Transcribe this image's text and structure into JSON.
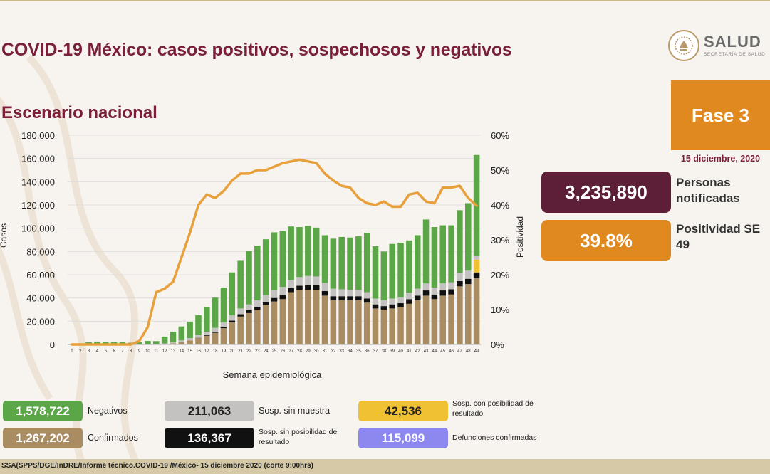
{
  "title": "COVID-19 México: casos positivos, sospechosos y negativos",
  "subtitle": "Escenario nacional",
  "logo": {
    "name": "SALUD",
    "sub": "SECRETARÍA DE SALUD"
  },
  "phase": "Fase 3",
  "date": "15 diciembre, 2020",
  "kpis": {
    "notified_value": "3,235,890",
    "notified_label": "Personas notificadas",
    "positivity_value": "39.8%",
    "positivity_label": "Positividad SE 49"
  },
  "legend": [
    {
      "value": "1,578,722",
      "label": "Negativos",
      "color": "#5ba646",
      "text_color": "#ffffff"
    },
    {
      "value": "1,267,202",
      "label": "Confirmados",
      "color": "#a98c61",
      "text_color": "#ffffff"
    },
    {
      "value": "211,063",
      "label": "Sosp. sin muestra",
      "color": "#c4c2c0",
      "text_color": "#222222"
    },
    {
      "value": "136,367",
      "label": "Sosp. sin posibilidad de resultado",
      "color": "#111111",
      "text_color": "#ffffff"
    },
    {
      "value": "42,536",
      "label": "Sosp. con posibilidad de resultado",
      "color": "#f0c233",
      "text_color": "#222222"
    },
    {
      "value": "115,099",
      "label": "Defunciones confirmadas",
      "color": "#8c88f0",
      "text_color": "#ffffff"
    }
  ],
  "footer": "SSA(SPPS/DGE/InDRE/Informe técnico.COVID-19 /México- 15 diciembre 2020 (corte 9:00hrs)",
  "chart_data": {
    "type": "bar",
    "stacked": true,
    "xlabel": "Semana epidemiológica",
    "ylabel": "Casos",
    "y2label": "Positividad",
    "ylim": [
      0,
      180000
    ],
    "y2lim": [
      0,
      60
    ],
    "yticks": [
      "0",
      "20,000",
      "40,000",
      "60,000",
      "80,000",
      "100,000",
      "120,000",
      "140,000",
      "160,000",
      "180,000"
    ],
    "y2ticks": [
      "0%",
      "10%",
      "20%",
      "30%",
      "40%",
      "50%",
      "60%"
    ],
    "categories": [
      "1",
      "2",
      "3",
      "4",
      "5",
      "6",
      "7",
      "8",
      "9",
      "10",
      "11",
      "12",
      "13",
      "14",
      "15",
      "16",
      "17",
      "18",
      "19",
      "20",
      "21",
      "22",
      "23",
      "24",
      "25",
      "26",
      "27",
      "28",
      "29",
      "30",
      "31",
      "32",
      "33",
      "34",
      "35",
      "36",
      "37",
      "38",
      "39",
      "40",
      "41",
      "42",
      "43",
      "44",
      "45",
      "46",
      "47",
      "48",
      "49"
    ],
    "series": [
      {
        "name": "Confirmados",
        "color": "#a98c61",
        "values": [
          0,
          0,
          0,
          0,
          0,
          0,
          0,
          0,
          0,
          0,
          100,
          300,
          1000,
          2000,
          3500,
          5500,
          7500,
          10000,
          14000,
          19000,
          24000,
          27000,
          30000,
          34000,
          37000,
          39000,
          45000,
          47000,
          47000,
          47000,
          42000,
          38000,
          38000,
          38000,
          38000,
          36000,
          31000,
          30000,
          31000,
          32000,
          35000,
          38000,
          42000,
          39000,
          42000,
          43000,
          50000,
          52000,
          57000
        ]
      },
      {
        "name": "Sosp. sin posibilidad de resultado",
        "color": "#111111",
        "values": [
          0,
          0,
          0,
          0,
          0,
          0,
          0,
          0,
          0,
          0,
          0,
          0,
          0,
          0,
          0,
          200,
          500,
          800,
          1000,
          1500,
          2000,
          2500,
          2500,
          2500,
          3000,
          3500,
          3500,
          3500,
          4500,
          4000,
          4000,
          3500,
          3500,
          3500,
          3500,
          3500,
          3500,
          3000,
          3500,
          3500,
          4000,
          4000,
          4500,
          4000,
          4500,
          4500,
          4500,
          4500,
          5000
        ]
      },
      {
        "name": "Sosp. con posibilidad de resultado",
        "color": "#f0c233",
        "values": [
          0,
          0,
          0,
          0,
          0,
          0,
          0,
          0,
          0,
          0,
          0,
          0,
          0,
          0,
          0,
          0,
          0,
          0,
          0,
          0,
          0,
          0,
          0,
          0,
          0,
          0,
          0,
          0,
          0,
          0,
          0,
          0,
          0,
          0,
          0,
          0,
          0,
          0,
          0,
          0,
          0,
          0,
          0,
          0,
          0,
          0,
          0,
          0,
          11000
        ]
      },
      {
        "name": "Sosp. sin muestra",
        "color": "#c4c2c0",
        "values": [
          0,
          0,
          0,
          0,
          0,
          0,
          0,
          0,
          0,
          0,
          300,
          500,
          1000,
          1500,
          2000,
          2500,
          3000,
          3500,
          4000,
          4500,
          5000,
          5000,
          5500,
          6000,
          6500,
          7000,
          7000,
          7500,
          7500,
          7500,
          7000,
          6500,
          6000,
          5500,
          5500,
          5500,
          5000,
          5000,
          5000,
          5000,
          5500,
          6000,
          6000,
          6000,
          6000,
          6000,
          7000,
          7000,
          3000
        ]
      },
      {
        "name": "Negativos",
        "color": "#5ba646",
        "values": [
          500,
          1000,
          2000,
          2500,
          2000,
          2000,
          2000,
          1500,
          2000,
          3000,
          2500,
          6000,
          9000,
          12000,
          14000,
          17000,
          21000,
          26000,
          30000,
          37000,
          41000,
          46000,
          47000,
          48000,
          50000,
          48000,
          46000,
          43000,
          43000,
          42000,
          41000,
          43000,
          45000,
          45000,
          46000,
          51000,
          45000,
          42000,
          47000,
          47000,
          45000,
          46000,
          55000,
          52000,
          50000,
          49000,
          54000,
          58000,
          87000
        ]
      }
    ],
    "line": {
      "name": "Positividad",
      "color": "#e8a03c",
      "values": [
        0,
        0,
        0,
        0,
        0,
        0,
        0,
        0,
        1,
        5,
        15,
        16,
        18,
        25,
        32,
        40,
        43,
        42,
        44,
        47,
        49,
        49,
        50,
        50,
        51,
        52,
        52.5,
        53,
        52.5,
        52,
        49,
        47,
        45.5,
        45,
        42,
        40.5,
        40,
        41,
        39.5,
        39.5,
        43,
        43.5,
        41,
        40.5,
        45,
        45,
        45.5,
        42,
        39.8
      ]
    }
  }
}
